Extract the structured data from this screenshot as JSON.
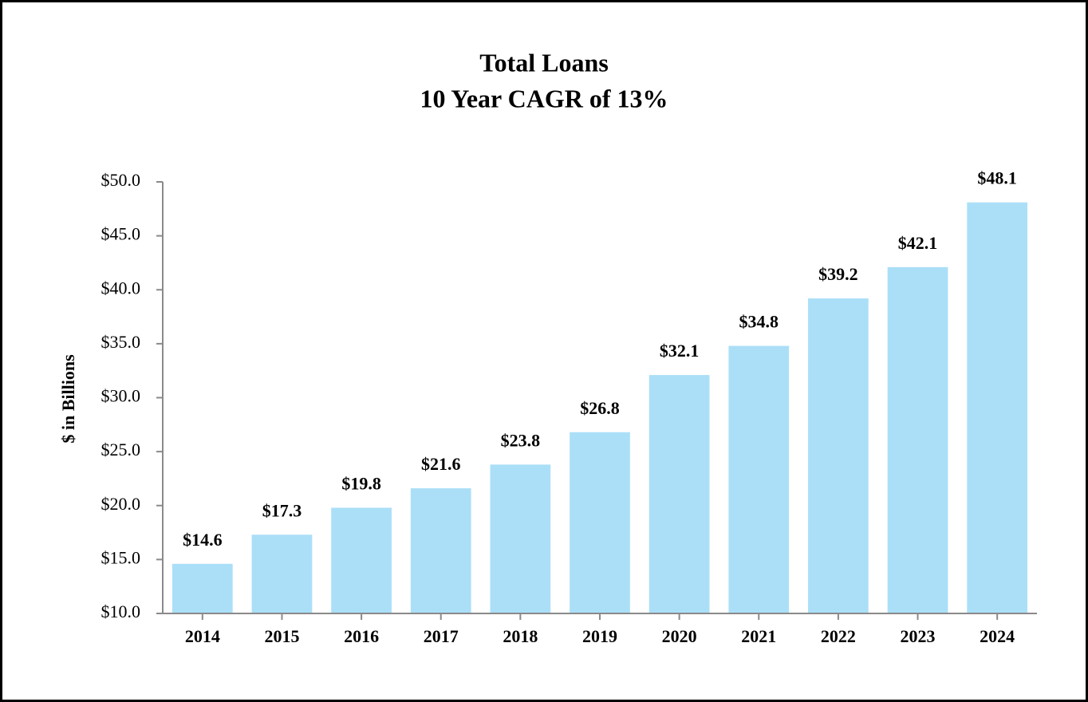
{
  "chart_data": {
    "type": "bar",
    "title": "Total Loans",
    "subtitle": "10 Year CAGR of 13%",
    "y_label": "$ in Billions",
    "categories": [
      "2014",
      "2015",
      "2016",
      "2017",
      "2018",
      "2019",
      "2020",
      "2021",
      "2022",
      "2023",
      "2024"
    ],
    "values": [
      14.6,
      17.3,
      19.8,
      21.6,
      23.8,
      26.8,
      32.1,
      34.8,
      39.2,
      42.1,
      48.1
    ],
    "value_labels": [
      "$14.6",
      "$17.3",
      "$19.8",
      "$21.6",
      "$23.8",
      "$26.8",
      "$32.1",
      "$34.8",
      "$39.2",
      "$42.1",
      "$48.1"
    ],
    "color": "#abdff8",
    "ylim": [
      10,
      50
    ],
    "yticks": [
      {
        "value": 10,
        "label": "$10.0"
      },
      {
        "value": 15,
        "label": "$15.0"
      },
      {
        "value": 20,
        "label": "$20.0"
      },
      {
        "value": 25,
        "label": "$25.0"
      },
      {
        "value": 30,
        "label": "$30.0"
      },
      {
        "value": 35,
        "label": "$35.0"
      },
      {
        "value": 40,
        "label": "$40.0"
      },
      {
        "value": 45,
        "label": "$45.0"
      },
      {
        "value": 50,
        "label": "$50.0"
      }
    ],
    "grid": false
  }
}
